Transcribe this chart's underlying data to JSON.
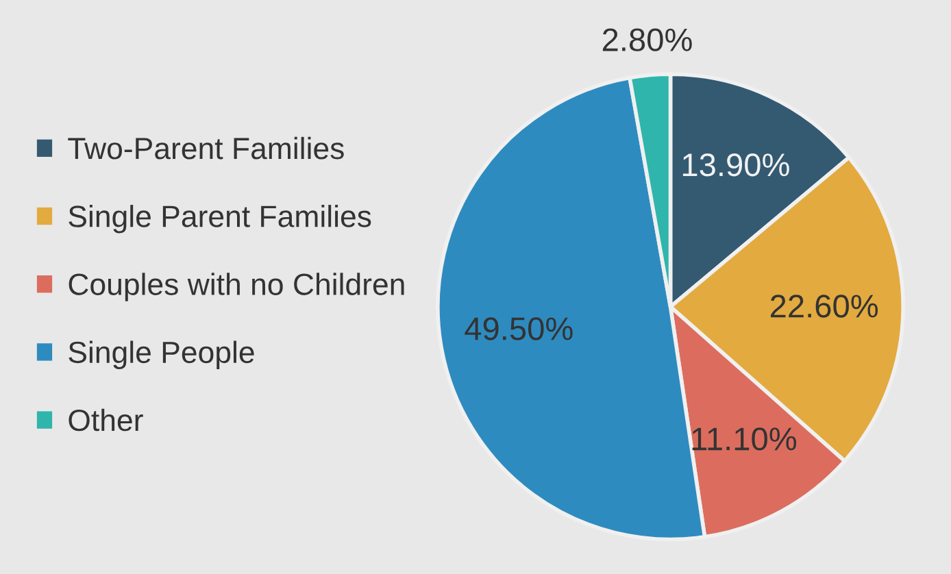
{
  "chart_data": {
    "type": "pie",
    "categories": [
      "Two-Parent Families",
      "Single Parent Families",
      "Couples with no Children",
      "Single People",
      "Other"
    ],
    "values": [
      13.9,
      22.6,
      11.1,
      49.5,
      2.8
    ],
    "value_labels": [
      "13.90%",
      "22.60%",
      "11.10%",
      "49.50%",
      "2.80%"
    ],
    "colors": [
      "#345a72",
      "#e3aa3f",
      "#dc6d5e",
      "#2e8bc0",
      "#2fb5ac"
    ],
    "legend": "left"
  }
}
